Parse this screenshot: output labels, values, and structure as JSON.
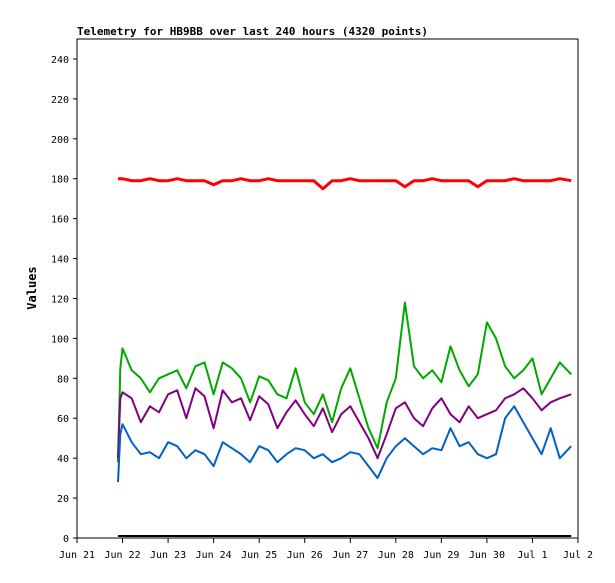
{
  "chart_data": {
    "type": "line",
    "title": "Telemetry for HB9BB over last 240 hours (4320 points)",
    "xlabel": "",
    "ylabel": "Values",
    "ylim": [
      0,
      250
    ],
    "yticks": [
      0,
      20,
      40,
      60,
      80,
      100,
      120,
      140,
      160,
      180,
      200,
      220,
      240
    ],
    "xlim": [
      0,
      11
    ],
    "xtick_labels": [
      "Jun 21",
      "Jun 22",
      "Jun 23",
      "Jun 24",
      "Jun 25",
      "Jun 26",
      "Jun 27",
      "Jun 28",
      "Jun 29",
      "Jun 30",
      "Jul 1",
      "Jul 2"
    ],
    "x": [
      0.9,
      0.95,
      1.0,
      1.2,
      1.4,
      1.6,
      1.8,
      2.0,
      2.2,
      2.4,
      2.6,
      2.8,
      3.0,
      3.2,
      3.4,
      3.6,
      3.8,
      4.0,
      4.2,
      4.4,
      4.6,
      4.8,
      5.0,
      5.2,
      5.4,
      5.6,
      5.8,
      6.0,
      6.2,
      6.4,
      6.6,
      6.8,
      7.0,
      7.2,
      7.4,
      7.6,
      7.8,
      8.0,
      8.2,
      8.4,
      8.6,
      8.8,
      9.0,
      9.2,
      9.4,
      9.6,
      9.8,
      10.0,
      10.2,
      10.4,
      10.6,
      10.85
    ],
    "series": [
      {
        "color": "#ff0000",
        "values": [
          180,
          180,
          180,
          179,
          179,
          180,
          179,
          179,
          180,
          179,
          179,
          179,
          177,
          179,
          179,
          180,
          179,
          179,
          180,
          179,
          179,
          179,
          179,
          179,
          175,
          179,
          179,
          180,
          179,
          179,
          179,
          179,
          179,
          176,
          179,
          179,
          180,
          179,
          179,
          179,
          179,
          176,
          179,
          179,
          179,
          180,
          179,
          179,
          179,
          179,
          180,
          179
        ]
      },
      {
        "color": "#00a800",
        "values": [
          38,
          85,
          95,
          84,
          80,
          73,
          80,
          82,
          84,
          75,
          86,
          88,
          72,
          88,
          85,
          80,
          68,
          81,
          79,
          72,
          70,
          85,
          68,
          62,
          72,
          58,
          75,
          85,
          70,
          55,
          45,
          68,
          80,
          118,
          86,
          80,
          84,
          78,
          96,
          84,
          76,
          82,
          108,
          100,
          86,
          80,
          84,
          90,
          72,
          80,
          88,
          82
        ]
      },
      {
        "color": "#800080",
        "values": [
          40,
          70,
          73,
          70,
          58,
          66,
          63,
          72,
          74,
          60,
          75,
          71,
          55,
          74,
          68,
          70,
          59,
          71,
          67,
          55,
          63,
          69,
          62,
          56,
          65,
          53,
          62,
          66,
          58,
          50,
          40,
          52,
          65,
          68,
          60,
          56,
          65,
          70,
          62,
          58,
          66,
          60,
          62,
          64,
          70,
          72,
          75,
          70,
          64,
          68,
          70,
          72
        ]
      },
      {
        "color": "#0060c8",
        "values": [
          28,
          52,
          57,
          48,
          42,
          43,
          40,
          48,
          46,
          40,
          44,
          42,
          36,
          48,
          45,
          42,
          38,
          46,
          44,
          38,
          42,
          45,
          44,
          40,
          42,
          38,
          40,
          43,
          42,
          36,
          30,
          40,
          46,
          50,
          46,
          42,
          45,
          44,
          55,
          46,
          48,
          42,
          40,
          42,
          60,
          66,
          58,
          50,
          42,
          55,
          40,
          46
        ]
      },
      {
        "color": "#000000",
        "values": [
          1,
          1,
          1,
          1,
          1,
          1,
          1,
          1,
          1,
          1,
          1,
          1,
          1,
          1,
          1,
          1,
          1,
          1,
          1,
          1,
          1,
          1,
          1,
          1,
          1,
          1,
          1,
          1,
          1,
          1,
          1,
          1,
          1,
          1,
          1,
          1,
          1,
          1,
          1,
          1,
          1,
          1,
          1,
          1,
          1,
          1,
          1,
          1,
          1,
          1,
          1,
          1
        ]
      }
    ],
    "grid": false,
    "legend": "none"
  }
}
